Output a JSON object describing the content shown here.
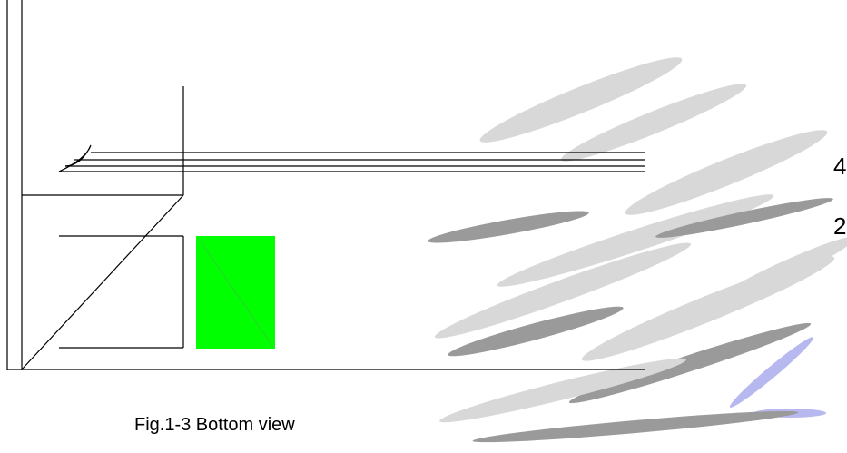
{
  "caption": "Fig.1-3 Bottom view",
  "labels": [
    "4",
    "2"
  ]
}
